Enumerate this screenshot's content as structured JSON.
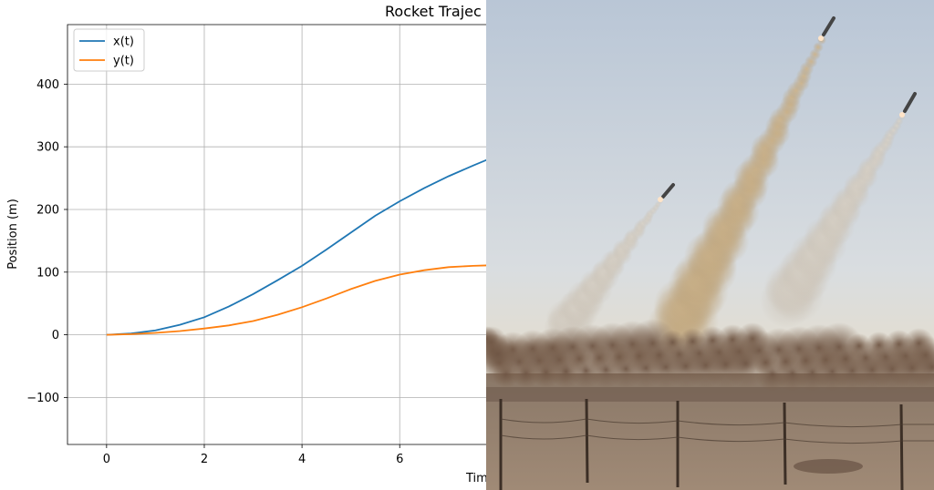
{
  "chart_data": {
    "type": "line",
    "title": "Rocket Trajec",
    "xlabel": "Tim",
    "ylabel": "Position (m)",
    "xlim": [
      -0.8,
      7.9
    ],
    "ylim": [
      -175,
      495
    ],
    "xticks": [
      0,
      2,
      4,
      6
    ],
    "yticks": [
      -100,
      0,
      100,
      200,
      300,
      400
    ],
    "grid": true,
    "legend_position": "top-left",
    "series": [
      {
        "name": "x(t)",
        "color": "#1f77b4",
        "x": [
          0,
          0.5,
          1,
          1.5,
          2,
          2.5,
          3,
          3.5,
          4,
          4.5,
          5,
          5.5,
          6,
          6.5,
          7,
          7.5,
          7.9
        ],
        "values": [
          0,
          2,
          7,
          16,
          28,
          45,
          65,
          87,
          110,
          136,
          163,
          190,
          213,
          234,
          253,
          270,
          283
        ]
      },
      {
        "name": "y(t)",
        "color": "#ff7f0e",
        "x": [
          0,
          0.5,
          1,
          1.5,
          2,
          2.5,
          3,
          3.5,
          4,
          4.5,
          5,
          5.5,
          6,
          6.5,
          7,
          7.5,
          7.9
        ],
        "values": [
          0,
          1,
          3,
          6,
          10,
          15,
          22,
          32,
          44,
          58,
          73,
          86,
          96,
          103,
          108,
          110,
          111
        ]
      }
    ]
  },
  "photo": {
    "caption": ""
  }
}
